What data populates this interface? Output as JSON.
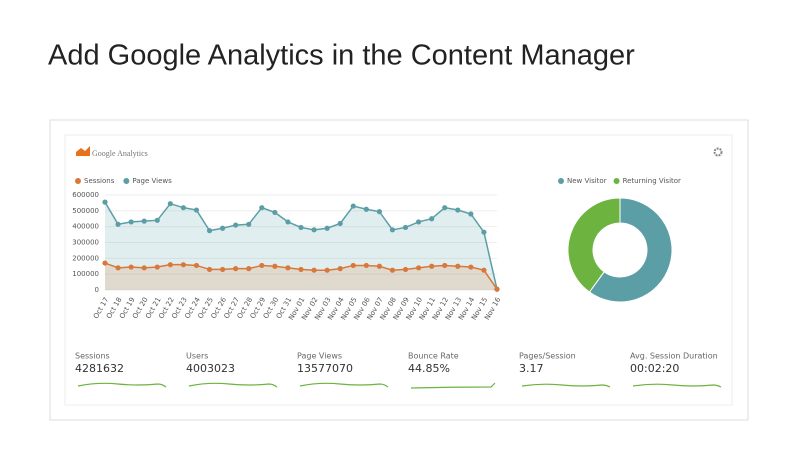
{
  "header": {
    "title": "Add Google Analytics in the Content Manager"
  },
  "widget": {
    "logo": "Google Analytics"
  },
  "chart_data": [
    {
      "type": "line",
      "categories": [
        "Oct 17",
        "Oct 18",
        "Oct 19",
        "Oct 20",
        "Oct 21",
        "Oct 22",
        "Oct 23",
        "Oct 24",
        "Oct 25",
        "Oct 26",
        "Oct 27",
        "Oct 28",
        "Oct 29",
        "Oct 30",
        "Oct 31",
        "Nov 01",
        "Nov 02",
        "Nov 03",
        "Nov 04",
        "Nov 05",
        "Nov 06",
        "Nov 07",
        "Nov 08",
        "Nov 09",
        "Nov 10",
        "Nov 11",
        "Nov 12",
        "Nov 13",
        "Nov 14",
        "Nov 15",
        "Nov 16"
      ],
      "series": [
        {
          "name": "Sessions",
          "color": "#d9783a",
          "values": [
            170000,
            140000,
            145000,
            140000,
            145000,
            160000,
            160000,
            155000,
            130000,
            130000,
            135000,
            135000,
            155000,
            150000,
            140000,
            130000,
            125000,
            125000,
            135000,
            155000,
            155000,
            150000,
            125000,
            130000,
            140000,
            150000,
            155000,
            150000,
            145000,
            125000,
            5000
          ]
        },
        {
          "name": "Page Views",
          "color": "#5b9ea6",
          "values": [
            555000,
            415000,
            430000,
            435000,
            440000,
            545000,
            520000,
            505000,
            375000,
            390000,
            410000,
            415000,
            520000,
            490000,
            430000,
            395000,
            380000,
            390000,
            420000,
            530000,
            510000,
            495000,
            380000,
            395000,
            430000,
            450000,
            520000,
            505000,
            480000,
            365000,
            5000
          ]
        }
      ],
      "ylim": [
        0,
        600000
      ],
      "yticks": [
        0,
        100000,
        200000,
        300000,
        400000,
        500000,
        600000
      ],
      "area": true
    },
    {
      "type": "pie",
      "categories": [
        "New Visitor",
        "Returning Visitor"
      ],
      "values": [
        60,
        40
      ],
      "colors": [
        "#5b9ea6",
        "#6cb33f"
      ],
      "donut": true
    }
  ],
  "metrics": [
    {
      "label": "Sessions",
      "value": "4281632"
    },
    {
      "label": "Users",
      "value": "4003023"
    },
    {
      "label": "Page Views",
      "value": "13577070"
    },
    {
      "label": "Bounce Rate",
      "value": "44.85%"
    },
    {
      "label": "Pages/Session",
      "value": "3.17"
    },
    {
      "label": "Avg. Session Duration",
      "value": "00:02:20"
    }
  ]
}
